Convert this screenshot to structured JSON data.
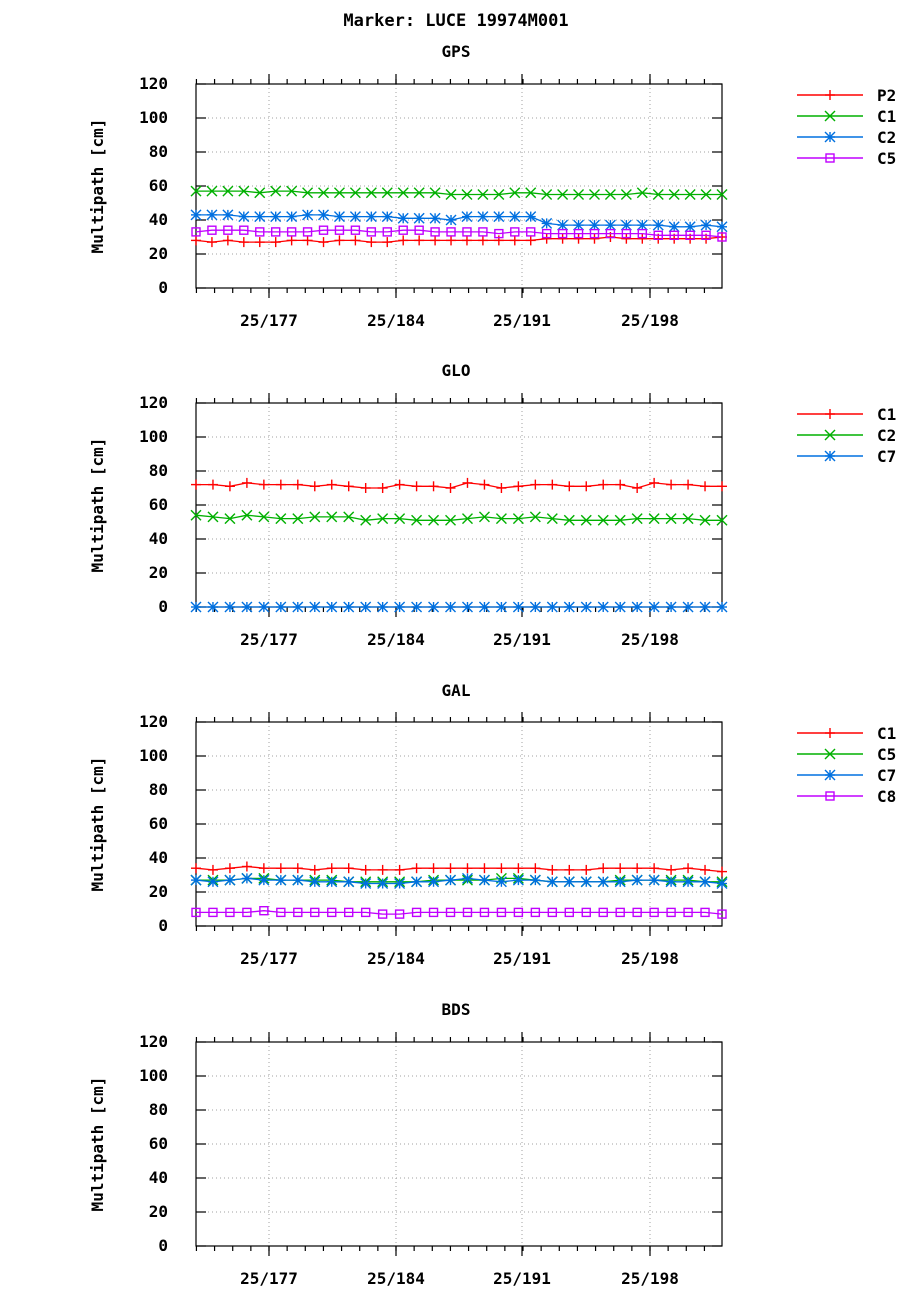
{
  "figure": {
    "title": "Marker: LUCE 19974M001"
  },
  "chart_data": [
    {
      "type": "line",
      "title": "GPS",
      "ylabel": "Multipath [cm]",
      "xlabel": "",
      "ylim": [
        0,
        120
      ],
      "yticks": [
        "0",
        "20",
        "40",
        "60",
        "80",
        "100",
        "120"
      ],
      "xtick_labels": [
        "25/177",
        "25/184",
        "25/191",
        "25/198"
      ],
      "x_day_range": [
        173,
        202
      ],
      "grid": true,
      "legend_position": "right",
      "series": [
        {
          "name": "P2",
          "color": "#ff0000",
          "marker": "plus",
          "values": [
            28,
            27,
            28,
            27,
            27,
            27,
            28,
            28,
            27,
            28,
            28,
            27,
            27,
            28,
            28,
            28,
            28,
            28,
            28,
            28,
            28,
            28,
            29,
            29,
            29,
            29,
            30,
            29,
            29,
            29,
            29,
            29,
            29,
            30
          ]
        },
        {
          "name": "C1",
          "color": "#00b000",
          "marker": "cross",
          "values": [
            57,
            57,
            57,
            57,
            56,
            57,
            57,
            56,
            56,
            56,
            56,
            56,
            56,
            56,
            56,
            56,
            55,
            55,
            55,
            55,
            56,
            56,
            55,
            55,
            55,
            55,
            55,
            55,
            56,
            55,
            55,
            55,
            55,
            55
          ]
        },
        {
          "name": "C2",
          "color": "#0070e0",
          "marker": "star",
          "values": [
            43,
            43,
            43,
            42,
            42,
            42,
            42,
            43,
            43,
            42,
            42,
            42,
            42,
            41,
            41,
            41,
            40,
            42,
            42,
            42,
            42,
            42,
            38,
            37,
            37,
            37,
            37,
            37,
            37,
            37,
            36,
            36,
            37,
            36
          ]
        },
        {
          "name": "C5",
          "color": "#c000ff",
          "marker": "square",
          "values": [
            33,
            34,
            34,
            34,
            33,
            33,
            33,
            33,
            34,
            34,
            34,
            33,
            33,
            34,
            34,
            33,
            33,
            33,
            33,
            32,
            33,
            33,
            32,
            32,
            32,
            32,
            32,
            32,
            32,
            31,
            31,
            31,
            31,
            30
          ]
        }
      ]
    },
    {
      "type": "line",
      "title": "GLO",
      "ylabel": "Multipath [cm]",
      "xlabel": "",
      "ylim": [
        0,
        120
      ],
      "yticks": [
        "0",
        "20",
        "40",
        "60",
        "80",
        "100",
        "120"
      ],
      "xtick_labels": [
        "25/177",
        "25/184",
        "25/191",
        "25/198"
      ],
      "x_day_range": [
        173,
        202
      ],
      "grid": true,
      "legend_position": "right",
      "series": [
        {
          "name": "C1",
          "color": "#ff0000",
          "marker": "plus",
          "values": [
            72,
            72,
            71,
            73,
            72,
            72,
            72,
            71,
            72,
            71,
            70,
            70,
            72,
            71,
            71,
            70,
            73,
            72,
            70,
            71,
            72,
            72,
            71,
            71,
            72,
            72,
            70,
            73,
            72,
            72,
            71,
            71
          ]
        },
        {
          "name": "C2",
          "color": "#00b000",
          "marker": "cross",
          "values": [
            54,
            53,
            52,
            54,
            53,
            52,
            52,
            53,
            53,
            53,
            51,
            52,
            52,
            51,
            51,
            51,
            52,
            53,
            52,
            52,
            53,
            52,
            51,
            51,
            51,
            51,
            52,
            52,
            52,
            52,
            51,
            51
          ]
        },
        {
          "name": "C7",
          "color": "#0070e0",
          "marker": "star",
          "values": [
            0,
            0,
            0,
            0,
            0,
            0,
            0,
            0,
            0,
            0,
            0,
            0,
            0,
            0,
            0,
            0,
            0,
            0,
            0,
            0,
            0,
            0,
            0,
            0,
            0,
            0,
            0,
            0,
            0,
            0,
            0,
            0
          ]
        }
      ]
    },
    {
      "type": "line",
      "title": "GAL",
      "ylabel": "Multipath [cm]",
      "xlabel": "",
      "ylim": [
        0,
        120
      ],
      "yticks": [
        "0",
        "20",
        "40",
        "60",
        "80",
        "100",
        "120"
      ],
      "xtick_labels": [
        "25/177",
        "25/184",
        "25/191",
        "25/198"
      ],
      "x_day_range": [
        173,
        202
      ],
      "grid": true,
      "legend_position": "right",
      "series": [
        {
          "name": "C1",
          "color": "#ff0000",
          "marker": "plus",
          "values": [
            34,
            33,
            34,
            35,
            34,
            34,
            34,
            33,
            34,
            34,
            33,
            33,
            33,
            34,
            34,
            34,
            34,
            34,
            34,
            34,
            34,
            33,
            33,
            33,
            34,
            34,
            34,
            34,
            33,
            34,
            33,
            32
          ]
        },
        {
          "name": "C5",
          "color": "#00b000",
          "marker": "cross",
          "values": [
            27,
            27,
            27,
            28,
            28,
            27,
            27,
            27,
            27,
            26,
            26,
            26,
            26,
            26,
            27,
            27,
            27,
            27,
            28,
            28,
            27,
            26,
            26,
            26,
            26,
            27,
            27,
            27,
            27,
            27,
            26,
            26
          ]
        },
        {
          "name": "C7",
          "color": "#0070e0",
          "marker": "star",
          "values": [
            27,
            26,
            27,
            28,
            27,
            27,
            27,
            26,
            26,
            26,
            25,
            25,
            25,
            26,
            26,
            27,
            28,
            27,
            26,
            27,
            27,
            26,
            26,
            26,
            26,
            26,
            27,
            27,
            26,
            26,
            26,
            25
          ]
        },
        {
          "name": "C8",
          "color": "#c000ff",
          "marker": "square",
          "values": [
            8,
            8,
            8,
            8,
            9,
            8,
            8,
            8,
            8,
            8,
            8,
            7,
            7,
            8,
            8,
            8,
            8,
            8,
            8,
            8,
            8,
            8,
            8,
            8,
            8,
            8,
            8,
            8,
            8,
            8,
            8,
            7
          ]
        }
      ]
    },
    {
      "type": "line",
      "title": "BDS",
      "ylabel": "Multipath [cm]",
      "xlabel": "",
      "ylim": [
        0,
        120
      ],
      "yticks": [
        "0",
        "20",
        "40",
        "60",
        "80",
        "100",
        "120"
      ],
      "xtick_labels": [
        "25/177",
        "25/184",
        "25/191",
        "25/198"
      ],
      "x_day_range": [
        173,
        202
      ],
      "grid": true,
      "legend_position": "right",
      "series": []
    }
  ]
}
